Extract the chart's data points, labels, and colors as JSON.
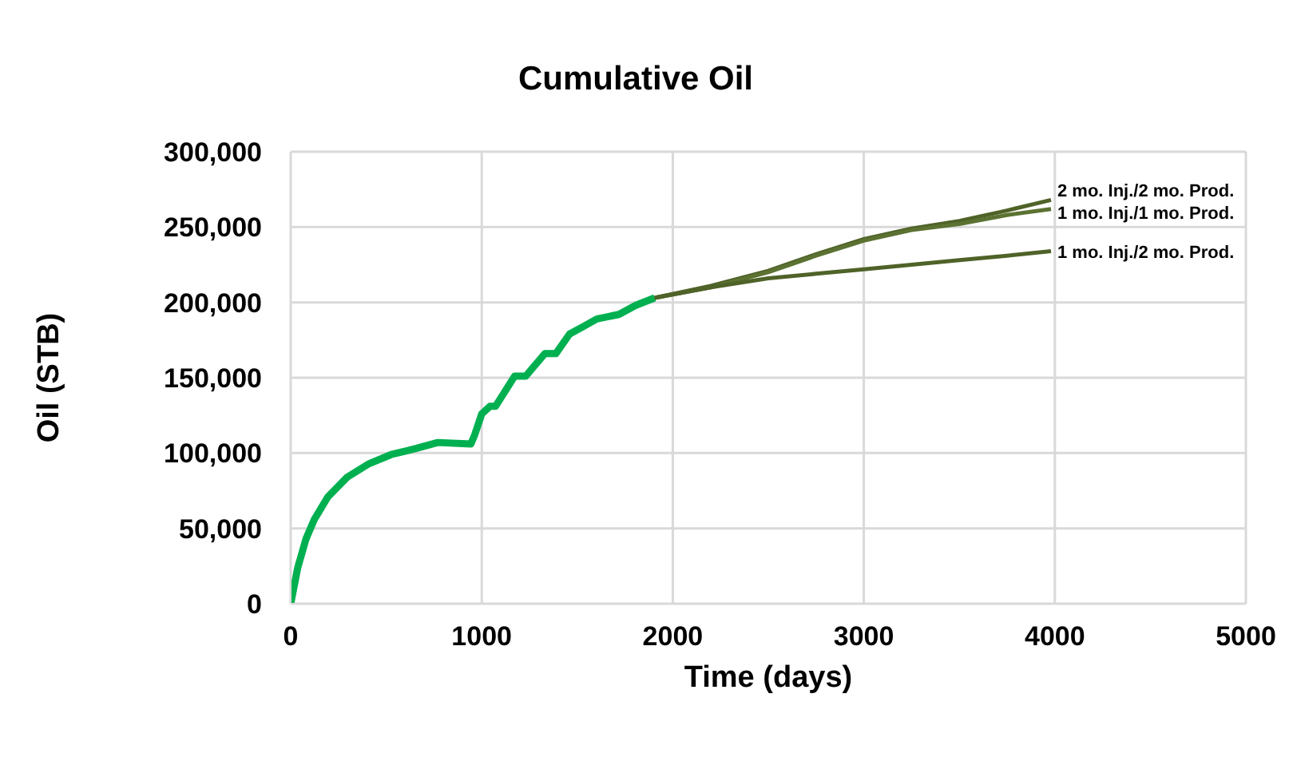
{
  "chart_data": {
    "type": "line",
    "title": "Cumulative Oil",
    "xlabel": "Time (days)",
    "ylabel": "Oil (STB)",
    "xlim": [
      0,
      5000
    ],
    "xticks": [
      0,
      1000,
      2000,
      3000,
      4000,
      5000
    ],
    "ylim": [
      0,
      300000
    ],
    "yticks": [
      {
        "value": 0,
        "label": "0"
      },
      {
        "value": 50000,
        "label": "50,000"
      },
      {
        "value": 100000,
        "label": "100,000"
      },
      {
        "value": 150000,
        "label": "150,000"
      },
      {
        "value": 200000,
        "label": "200,000"
      },
      {
        "value": 250000,
        "label": "250,000"
      },
      {
        "value": 300000,
        "label": "300,000"
      }
    ],
    "grid": true,
    "series": [
      {
        "color": "#00b050",
        "x": [
          0,
          37,
          80,
          124,
          195,
          296,
          411,
          526,
          655,
          770,
          943,
          963,
          1000,
          1043,
          1072,
          1172,
          1230,
          1330,
          1388,
          1460,
          1532,
          1603,
          1718,
          1805,
          1905
        ],
        "values": [
          0,
          24000,
          43000,
          56000,
          71000,
          84000,
          93000,
          99000,
          103000,
          107000,
          106000,
          112000,
          126000,
          131000,
          131000,
          151000,
          151000,
          166000,
          166000,
          179000,
          184000,
          189000,
          192000,
          198000,
          203000
        ]
      },
      {
        "name": "2 mo. Inj./2 mo. Prod.",
        "color": "#4f6228",
        "x": [
          1905,
          2200,
          2500,
          2750,
          3000,
          3250,
          3500,
          3750,
          3980
        ],
        "values": [
          203000,
          211000,
          221000,
          232000,
          242000,
          249000,
          254000,
          261000,
          268000
        ]
      },
      {
        "name": "1 mo. Inj./1 mo. Prod.",
        "color": "#5b7232",
        "x": [
          1905,
          2200,
          2500,
          2750,
          3000,
          3250,
          3500,
          3750,
          3980
        ],
        "values": [
          203000,
          210000,
          220000,
          231000,
          241000,
          248000,
          252000,
          258000,
          262000
        ]
      },
      {
        "name": "1 mo. Inj./2 mo. Prod.",
        "color": "#4f6228",
        "x": [
          1905,
          2200,
          2500,
          2750,
          3000,
          3250,
          3500,
          3750,
          3980
        ],
        "values": [
          203000,
          210000,
          216000,
          219000,
          222000,
          225000,
          228000,
          231000,
          234000
        ]
      }
    ]
  }
}
